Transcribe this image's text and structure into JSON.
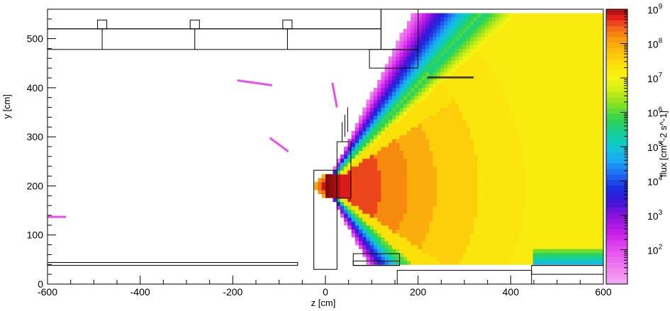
{
  "chart_data": {
    "type": "heatmap",
    "xlabel": "z [cm]",
    "ylabel": "y [cm]",
    "zlabel": "flux [cm^-2 s^-1]",
    "xlim": [
      -600,
      600
    ],
    "ylim": [
      0,
      560
    ],
    "zlim_log10": [
      1,
      9
    ],
    "zscale": "log",
    "x_ticks": [
      -600,
      -400,
      -200,
      0,
      200,
      400,
      600
    ],
    "x_tick_labels": [
      "-600",
      "-400",
      "-200",
      "0",
      "200",
      "400",
      "600"
    ],
    "y_ticks": [
      0,
      100,
      200,
      300,
      400,
      500
    ],
    "y_tick_labels": [
      "0",
      "100",
      "200",
      "300",
      "400",
      "500"
    ],
    "colorbar_ticks_exp": [
      2,
      3,
      4,
      5,
      6,
      7,
      8,
      9
    ],
    "source": {
      "z": 0,
      "y": 200,
      "peak_flux_log10": 9
    },
    "background_flux_log10": 7,
    "labels_on_colorbar": {
      "base": "10",
      "exponents": [
        "2",
        "3",
        "4",
        "5",
        "6",
        "7",
        "8",
        "9"
      ]
    }
  }
}
